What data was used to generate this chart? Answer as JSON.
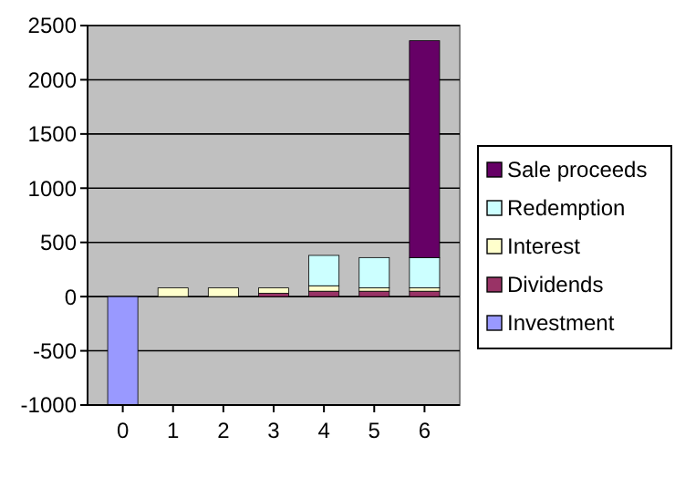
{
  "chart_data": {
    "type": "bar",
    "stacked": true,
    "categories": [
      "0",
      "1",
      "2",
      "3",
      "4",
      "5",
      "6"
    ],
    "series": [
      {
        "name": "Investment",
        "color": "#9999ff",
        "values": [
          -1000,
          null,
          null,
          null,
          null,
          null,
          null
        ]
      },
      {
        "name": "Dividends",
        "color": "#993366",
        "values": [
          null,
          0,
          0,
          30,
          50,
          50,
          50
        ]
      },
      {
        "name": "Interest",
        "color": "#ffffcc",
        "values": [
          null,
          80,
          80,
          50,
          50,
          30,
          30
        ]
      },
      {
        "name": "Redemption",
        "color": "#ccffff",
        "values": [
          null,
          null,
          null,
          null,
          280,
          280,
          280
        ]
      },
      {
        "name": "Sale proceeds",
        "color": "#660066",
        "values": [
          null,
          null,
          null,
          null,
          null,
          null,
          2000
        ]
      }
    ],
    "ylim": [
      -1000,
      2500
    ],
    "yticks": [
      -1000,
      -500,
      0,
      500,
      1000,
      1500,
      2000,
      2500
    ],
    "grid": "y",
    "legend": "right"
  }
}
